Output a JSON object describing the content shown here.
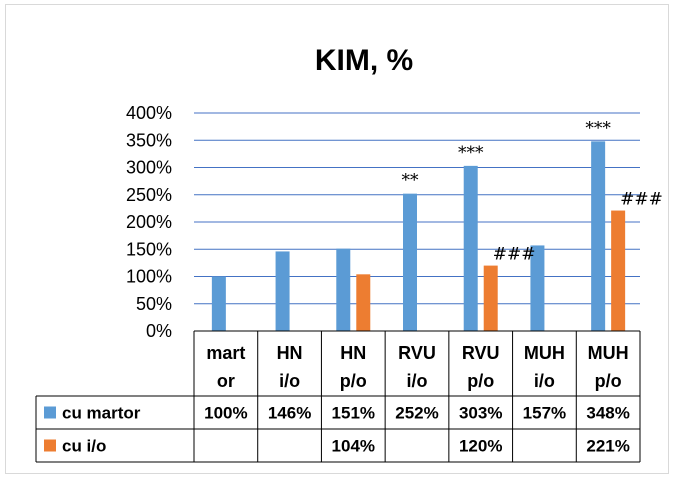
{
  "chart_data": {
    "type": "bar",
    "title": "KIM, %",
    "categories": [
      [
        "mart",
        "or"
      ],
      [
        "HN",
        "i/o"
      ],
      [
        "HN",
        "p/o"
      ],
      [
        "RVU",
        "i/o"
      ],
      [
        "RVU",
        "p/o"
      ],
      [
        "MUH",
        "i/o"
      ],
      [
        "MUH",
        "p/o"
      ]
    ],
    "series": [
      {
        "name": "cu martor",
        "color": "#5b9bd5",
        "values": [
          100,
          146,
          151,
          252,
          303,
          157,
          348
        ],
        "labels": [
          "100%",
          "146%",
          "151%",
          "252%",
          "303%",
          "157%",
          "348%"
        ]
      },
      {
        "name": "cu i/o",
        "color": "#ed7d31",
        "values": [
          null,
          null,
          104,
          null,
          120,
          null,
          221
        ],
        "labels": [
          "",
          "",
          "104%",
          "",
          "120%",
          "",
          "221%"
        ]
      }
    ],
    "annotations": [
      {
        "series": 0,
        "category": 3,
        "text": "**"
      },
      {
        "series": 0,
        "category": 4,
        "text": "***"
      },
      {
        "series": 0,
        "category": 6,
        "text": "***"
      },
      {
        "series": 1,
        "category": 4,
        "text": "###"
      },
      {
        "series": 1,
        "category": 6,
        "text": "###"
      }
    ],
    "ylim": [
      0,
      400
    ],
    "yticks": [
      "0%",
      "50%",
      "100%",
      "150%",
      "200%",
      "250%",
      "300%",
      "350%",
      "400%"
    ],
    "grid": true,
    "legend": "data-table"
  }
}
